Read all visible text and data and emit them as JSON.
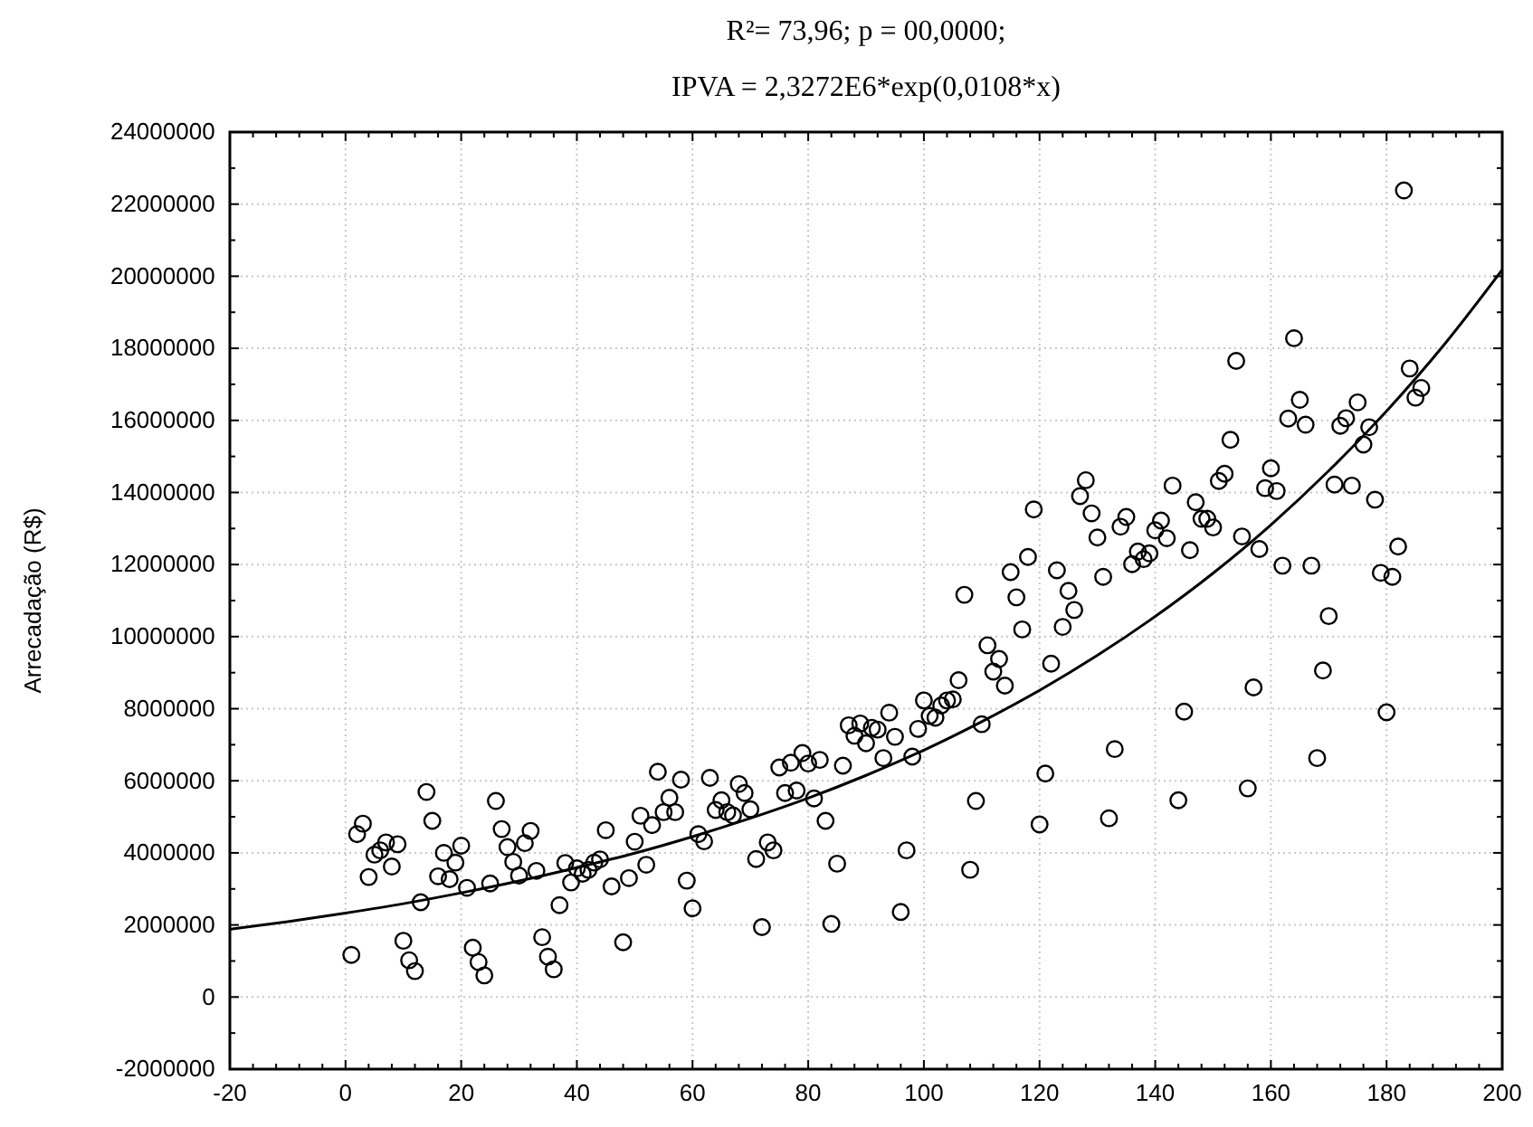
{
  "chart_data": {
    "type": "scatter",
    "title": "R²= 73,96; p = 00,0000;",
    "subtitle": "IPVA = 2,3272E6*exp(0,0108*x)",
    "ylabel": "Arrecadação (R$)",
    "xlim": [
      -20,
      200
    ],
    "xticks": [
      -20,
      {
        "value": -16,
        "label": null
      },
      {
        "value": -12,
        "label": null
      },
      {
        "value": -8,
        "label": null
      },
      {
        "value": -4,
        "label": null
      },
      0,
      {
        "value": 4,
        "label": null
      },
      {
        "value": 8,
        "label": null
      },
      {
        "value": 12,
        "label": null
      },
      {
        "value": 16,
        "label": null
      },
      20,
      {
        "value": 24,
        "label": null
      },
      {
        "value": 28,
        "label": null
      },
      {
        "value": 32,
        "label": null
      },
      {
        "value": 36,
        "label": null
      },
      40,
      {
        "value": 44,
        "label": null
      },
      {
        "value": 48,
        "label": null
      },
      {
        "value": 52,
        "label": null
      },
      {
        "value": 56,
        "label": null
      },
      60,
      {
        "value": 64,
        "label": null
      },
      {
        "value": 68,
        "label": null
      },
      {
        "value": 72,
        "label": null
      },
      {
        "value": 76,
        "label": null
      },
      80,
      {
        "value": 84,
        "label": null
      },
      {
        "value": 88,
        "label": null
      },
      {
        "value": 92,
        "label": null
      },
      {
        "value": 96,
        "label": null
      },
      100,
      {
        "value": 104,
        "label": null
      },
      {
        "value": 108,
        "label": null
      },
      {
        "value": 112,
        "label": null
      },
      {
        "value": 116,
        "label": null
      },
      120,
      {
        "value": 124,
        "label": null
      },
      {
        "value": 128,
        "label": null
      },
      {
        "value": 132,
        "label": null
      },
      {
        "value": 136,
        "label": null
      },
      140,
      {
        "value": 144,
        "label": null
      },
      {
        "value": 148,
        "label": null
      },
      {
        "value": 152,
        "label": null
      },
      {
        "value": 156,
        "label": null
      },
      160,
      {
        "value": 164,
        "label": null
      },
      {
        "value": 168,
        "label": null
      },
      {
        "value": 172,
        "label": null
      },
      {
        "value": 176,
        "label": null
      },
      180,
      {
        "value": 184,
        "label": null
      },
      {
        "value": 188,
        "label": null
      },
      {
        "value": 192,
        "label": null
      },
      {
        "value": 196,
        "label": null
      },
      200
    ],
    "ylim": [
      -2000000,
      24000000
    ],
    "yticks": [
      -2000000,
      {
        "value": -1000000,
        "label": null
      },
      0,
      {
        "value": 1000000,
        "label": null
      },
      2000000,
      {
        "value": 3000000,
        "label": null
      },
      4000000,
      {
        "value": 5000000,
        "label": null
      },
      6000000,
      {
        "value": 7000000,
        "label": null
      },
      8000000,
      {
        "value": 9000000,
        "label": null
      },
      10000000,
      {
        "value": 11000000,
        "label": null
      },
      12000000,
      {
        "value": 13000000,
        "label": null
      },
      14000000,
      {
        "value": 15000000,
        "label": null
      },
      16000000,
      {
        "value": 17000000,
        "label": null
      },
      18000000,
      {
        "value": 19000000,
        "label": null
      },
      20000000,
      {
        "value": 21000000,
        "label": null
      },
      22000000,
      {
        "value": 23000000,
        "label": null
      },
      24000000
    ],
    "grid": true,
    "marker": "circle",
    "series": [
      {
        "color": "#000000",
        "x": [
          1,
          2,
          3,
          4,
          5,
          6,
          7,
          8,
          9,
          10,
          11,
          12,
          13,
          14,
          15,
          16,
          17,
          18,
          19,
          20,
          21,
          22,
          23,
          24,
          25,
          26,
          27,
          28,
          29,
          30,
          31,
          32,
          33,
          34,
          35,
          36,
          37,
          38,
          39,
          40,
          41,
          42,
          43,
          44,
          45,
          46,
          48,
          49,
          50,
          51,
          52,
          53,
          54,
          55,
          56,
          57,
          58,
          59,
          60,
          61,
          62,
          63,
          64,
          65,
          66,
          67,
          68,
          69,
          70,
          71,
          72,
          73,
          74,
          75,
          76,
          77,
          78,
          79,
          80,
          81,
          82,
          83,
          84,
          85,
          86,
          87,
          88,
          89,
          90,
          91,
          92,
          93,
          94,
          95,
          96,
          97,
          98,
          99,
          100,
          101,
          102,
          103,
          104,
          105,
          106,
          107,
          108,
          109,
          110,
          111,
          112,
          113,
          114,
          115,
          116,
          117,
          118,
          119,
          120,
          121,
          122,
          123,
          124,
          125,
          126,
          127,
          128,
          129,
          130,
          131,
          132,
          133,
          134,
          135,
          136,
          137,
          138,
          139,
          140,
          141,
          142,
          143,
          144,
          145,
          146,
          147,
          148,
          149,
          150,
          151,
          152,
          153,
          154,
          155,
          156,
          157,
          158,
          159,
          160,
          161,
          162,
          163,
          164,
          165,
          166,
          167,
          168,
          169,
          170,
          171,
          172,
          173,
          174,
          175,
          176,
          177,
          178,
          179,
          180,
          181,
          182,
          183,
          184,
          185,
          186
        ],
        "values": [
          1170000,
          4520000,
          4810000,
          3330000,
          3950000,
          4070000,
          4290000,
          3620000,
          4240000,
          1560000,
          1020000,
          720000,
          2630000,
          5690000,
          4890000,
          3350000,
          4000000,
          3270000,
          3730000,
          4200000,
          3030000,
          1370000,
          970000,
          600000,
          3150000,
          5440000,
          4660000,
          4160000,
          3750000,
          3370000,
          4270000,
          4610000,
          3500000,
          1660000,
          1120000,
          770000,
          2550000,
          3720000,
          3180000,
          3570000,
          3420000,
          3530000,
          3730000,
          3820000,
          4630000,
          3070000,
          1520000,
          3300000,
          4310000,
          5030000,
          3670000,
          4770000,
          6250000,
          5130000,
          5530000,
          5130000,
          6030000,
          3230000,
          2460000,
          4520000,
          4320000,
          6080000,
          5190000,
          5460000,
          5130000,
          5040000,
          5910000,
          5660000,
          5210000,
          3830000,
          1940000,
          4290000,
          4070000,
          6370000,
          5660000,
          6500000,
          5730000,
          6770000,
          6480000,
          5510000,
          6580000,
          4890000,
          2030000,
          3700000,
          6420000,
          7540000,
          7250000,
          7590000,
          7040000,
          7470000,
          7420000,
          6630000,
          7890000,
          7220000,
          2360000,
          4070000,
          6670000,
          7440000,
          8230000,
          7800000,
          7750000,
          8090000,
          8230000,
          8260000,
          8790000,
          11160000,
          3530000,
          5440000,
          7570000,
          9760000,
          9030000,
          9380000,
          8640000,
          11790000,
          11090000,
          10200000,
          12210000,
          13530000,
          4790000,
          6200000,
          9250000,
          11840000,
          10270000,
          11270000,
          10740000,
          13900000,
          14340000,
          13420000,
          12750000,
          11660000,
          4960000,
          6880000,
          13050000,
          13320000,
          12010000,
          12360000,
          12150000,
          12310000,
          12950000,
          13220000,
          12730000,
          14190000,
          5460000,
          7920000,
          12400000,
          13730000,
          13270000,
          13270000,
          13030000,
          14320000,
          14520000,
          15460000,
          17650000,
          12780000,
          5790000,
          8590000,
          12430000,
          14120000,
          14670000,
          14040000,
          11970000,
          16050000,
          18280000,
          16570000,
          15880000,
          11970000,
          6630000,
          9060000,
          10570000,
          14220000,
          15850000,
          16060000,
          14190000,
          16500000,
          15330000,
          15810000,
          13800000,
          11770000,
          7900000,
          11660000,
          12500000,
          22380000,
          17440000,
          16630000,
          16900000
        ]
      },
      {
        "type": "line",
        "color": "#000000",
        "marker": "none",
        "x": [
          -20,
          -10,
          0,
          10,
          20,
          30,
          40,
          50,
          60,
          70,
          80,
          90,
          100,
          110,
          120,
          130,
          140,
          150,
          160,
          170,
          180,
          190,
          200
        ],
        "values": [
          1880000,
          2090000,
          2330000,
          2590000,
          2890000,
          3220000,
          3590000,
          3990000,
          4450000,
          4960000,
          5520000,
          6150000,
          6850000,
          7640000,
          8510000,
          9480000,
          10560000,
          11760000,
          13100000,
          14600000,
          16260000,
          18110000,
          20180000
        ]
      }
    ]
  }
}
